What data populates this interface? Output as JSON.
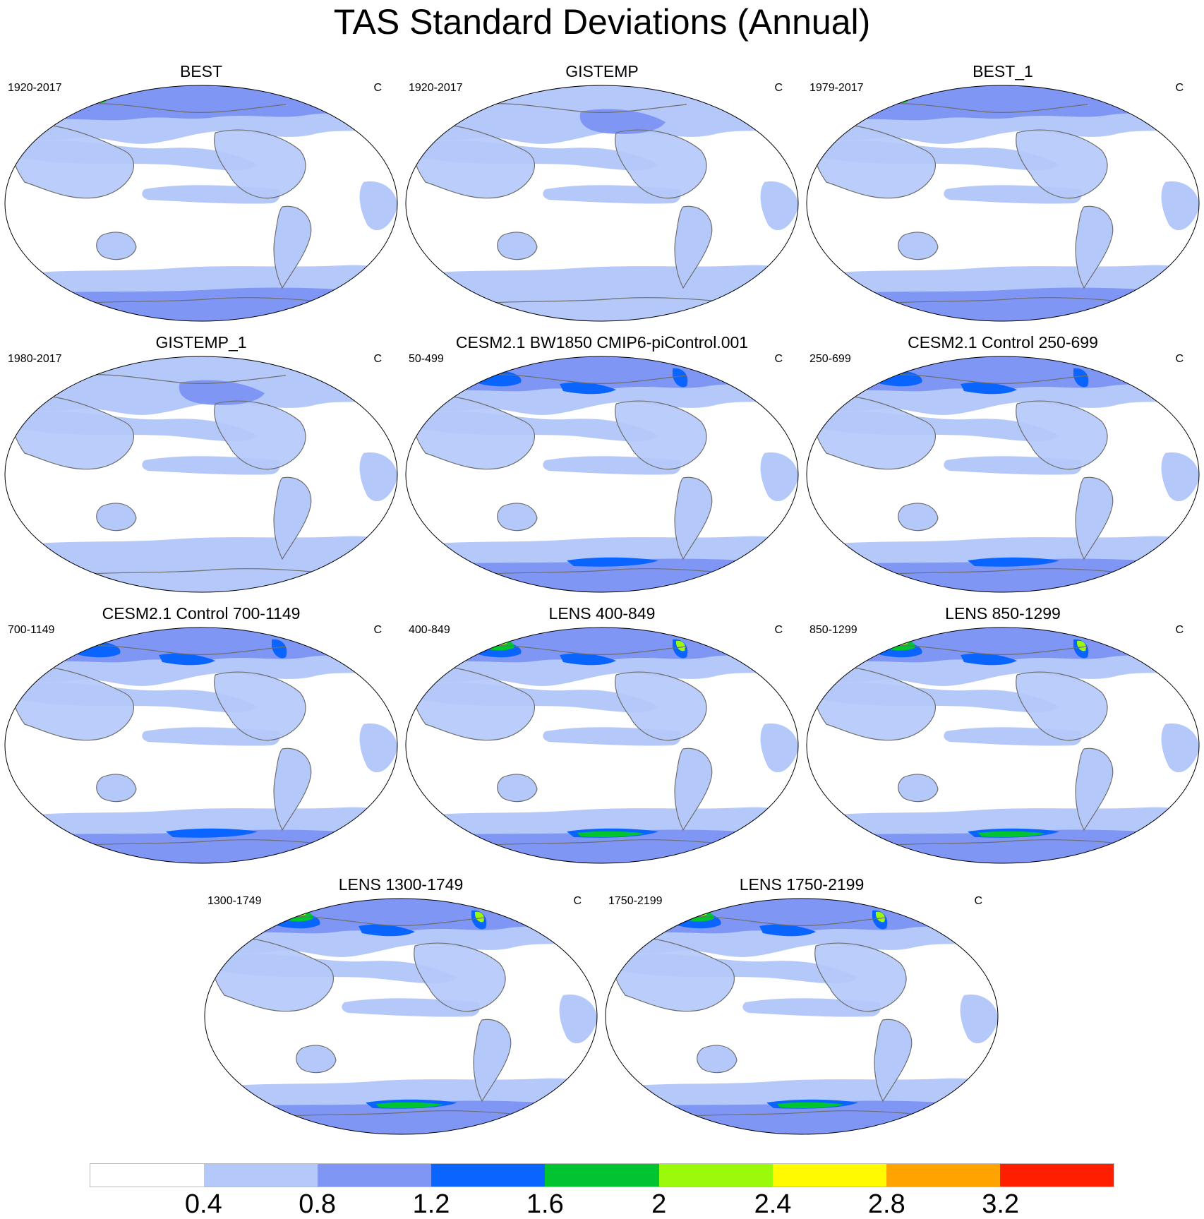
{
  "title": "TAS Standard Deviations (Annual)",
  "panels": [
    {
      "title": "BEST",
      "period": "1920-2017",
      "units": "C",
      "intensity": 1
    },
    {
      "title": "GISTEMP",
      "period": "1920-2017",
      "units": "C",
      "intensity": 0
    },
    {
      "title": "BEST_1",
      "period": "1979-2017",
      "units": "C",
      "intensity": 1
    },
    {
      "title": "GISTEMP_1",
      "period": "1980-2017",
      "units": "C",
      "intensity": 0
    },
    {
      "title": "CESM2.1 BW1850 CMIP6-piControl.001",
      "period": "50-499",
      "units": "C",
      "intensity": 2
    },
    {
      "title": "CESM2.1 Control 250-699",
      "period": "250-699",
      "units": "C",
      "intensity": 2
    },
    {
      "title": "CESM2.1 Control 700-1149",
      "period": "700-1149",
      "units": "C",
      "intensity": 2
    },
    {
      "title": "LENS 400-849",
      "period": "400-849",
      "units": "C",
      "intensity": 3
    },
    {
      "title": "LENS 850-1299",
      "period": "850-1299",
      "units": "C",
      "intensity": 3
    },
    {
      "title": "LENS 1300-1749",
      "period": "1300-1749",
      "units": "C",
      "intensity": 3
    },
    {
      "title": "LENS 1750-2199",
      "period": "1750-2199",
      "units": "C",
      "intensity": 3
    }
  ],
  "colorbar": {
    "colors": [
      "#ffffff",
      "#b4c8fa",
      "#7f96f4",
      "#0a64ff",
      "#00c531",
      "#9bfa0a",
      "#fffa00",
      "#ffa300",
      "#ff1e00"
    ],
    "labels": [
      "0.4",
      "0.8",
      "1.2",
      "1.6",
      "2",
      "2.4",
      "2.8",
      "3.2"
    ]
  }
}
